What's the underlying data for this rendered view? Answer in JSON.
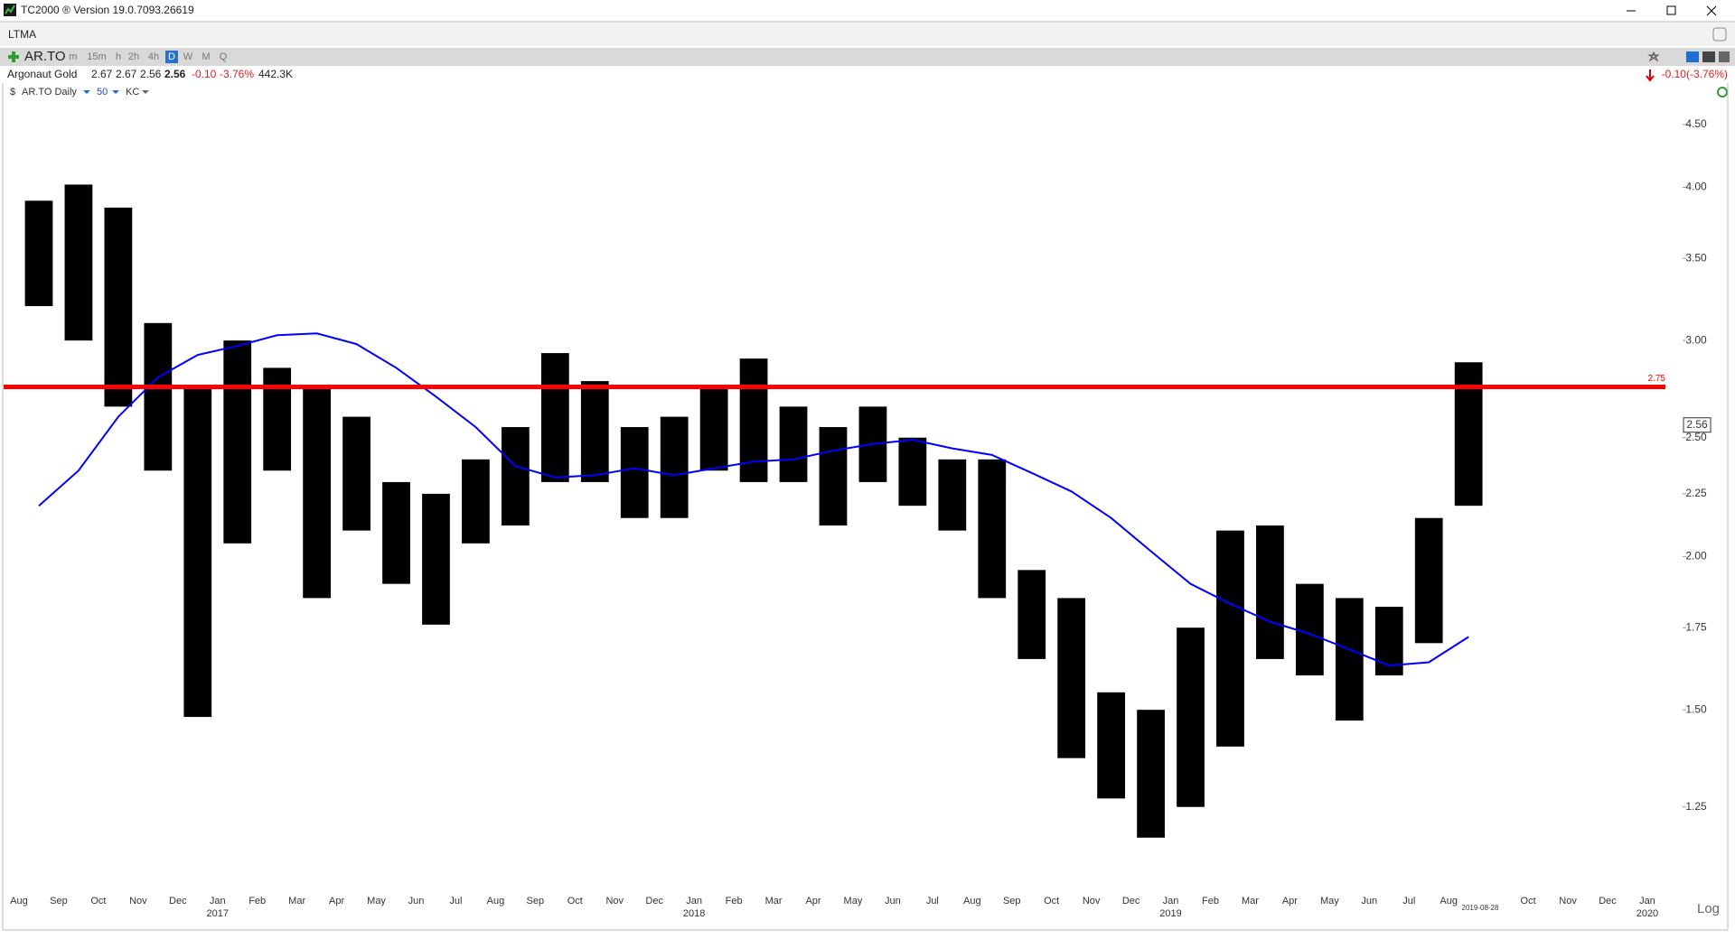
{
  "window": {
    "title": "TC2000 ® Version 19.0.7093.26619",
    "tab": "LTMA"
  },
  "toolbar": {
    "symbol": "AR.TO",
    "timeframes": [
      "m",
      "15m",
      "h",
      "2h",
      "4h",
      "D",
      "W",
      "M",
      "Q"
    ],
    "active": "D"
  },
  "quote": {
    "name": "Argonaut Gold",
    "fields": [
      "2.67",
      "2.67",
      "2.56",
      "2.56",
      "-0.10",
      "-3.76%",
      "442.3K"
    ],
    "change": "-0.10(-3.76%)"
  },
  "series_bar": {
    "symbol": "AR.TO Daily",
    "period": "50",
    "indicator": "KC"
  },
  "chart_data": {
    "type": "range",
    "categories": [
      "Aug",
      "Sep",
      "Oct",
      "Nov",
      "Dec",
      "Jan 2017",
      "Feb",
      "Mar",
      "Apr",
      "May",
      "Jun",
      "Jul",
      "Aug",
      "Sep",
      "Oct",
      "Nov",
      "Dec",
      "Jan 2018",
      "Feb",
      "Mar",
      "Apr",
      "May",
      "Jun",
      "Jul",
      "Aug",
      "Sep",
      "Oct",
      "Nov",
      "Dec",
      "Jan 2019",
      "Feb",
      "Mar",
      "Apr",
      "May",
      "Jun",
      "Jul",
      "Aug",
      null,
      "Oct",
      "Nov",
      "Dec",
      "Jan 2020"
    ],
    "high": [
      3.9,
      4.02,
      3.85,
      3.1,
      2.75,
      3.0,
      2.85,
      2.75,
      2.6,
      2.3,
      2.25,
      2.4,
      2.55,
      2.93,
      2.78,
      2.55,
      2.6,
      2.75,
      2.9,
      2.65,
      2.55,
      2.65,
      2.5,
      2.4,
      2.4,
      1.95,
      1.85,
      1.55,
      1.5,
      1.75,
      2.1,
      2.12,
      1.9,
      1.85,
      1.82,
      2.15,
      2.88,
      null,
      null,
      null,
      null,
      null
    ],
    "low": [
      3.2,
      3.0,
      2.65,
      2.35,
      1.48,
      2.05,
      2.35,
      1.85,
      2.1,
      1.9,
      1.76,
      2.05,
      2.12,
      2.3,
      2.3,
      2.15,
      2.15,
      2.35,
      2.3,
      2.3,
      2.12,
      2.3,
      2.2,
      2.1,
      1.85,
      1.65,
      1.37,
      1.27,
      1.18,
      1.25,
      1.4,
      1.65,
      1.6,
      1.47,
      1.6,
      1.7,
      2.2,
      null,
      null,
      null,
      null,
      null
    ],
    "ma": [
      2.2,
      2.35,
      2.6,
      2.8,
      2.92,
      2.97,
      3.03,
      3.04,
      2.98,
      2.85,
      2.7,
      2.55,
      2.37,
      2.32,
      2.33,
      2.36,
      2.33,
      2.36,
      2.39,
      2.4,
      2.44,
      2.47,
      2.49,
      2.45,
      2.42,
      2.34,
      2.26,
      2.15,
      2.02,
      1.9,
      1.83,
      1.77,
      1.73,
      1.68,
      1.63,
      1.64,
      1.72,
      null,
      null,
      null,
      null,
      null
    ],
    "bar_color": "#000000",
    "ma_color": "#0000ff",
    "ylim": [
      1.08,
      4.67
    ],
    "log": true,
    "yticks": [
      {
        "value": 1.25,
        "label": "1.25"
      },
      {
        "value": 1.5,
        "label": "1.50"
      },
      {
        "value": 1.75,
        "label": "1.75"
      },
      {
        "value": 2.0,
        "label": "2.00"
      },
      {
        "value": 2.25,
        "label": "2.25"
      },
      {
        "value": 2.5,
        "label": "2.50"
      },
      {
        "value": 3.0,
        "label": "3.00"
      },
      {
        "value": 3.5,
        "label": "3.50"
      },
      {
        "value": 4.0,
        "label": "4.00"
      },
      {
        "value": 4.5,
        "label": "4.50"
      }
    ],
    "hline": {
      "value": 2.75,
      "color": "#ff0000"
    },
    "last": 2.56,
    "date_label": "2019-08-28",
    "scale_label": "Log"
  }
}
